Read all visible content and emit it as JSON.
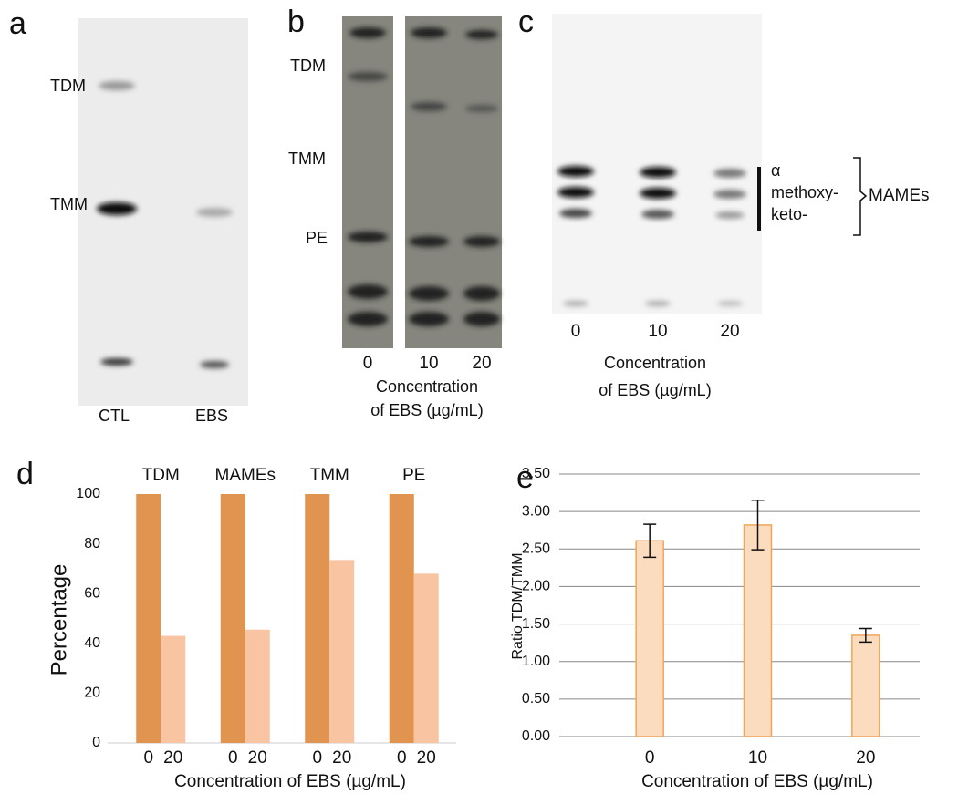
{
  "panels": {
    "a": {
      "label": "a",
      "bands": [
        "TDM",
        "TMM"
      ],
      "lanes": [
        "CTL",
        "EBS"
      ]
    },
    "b": {
      "label": "b",
      "bands": [
        "TDM",
        "TMM",
        "PE"
      ],
      "lanes": [
        "0",
        "10",
        "20"
      ],
      "xlabel": [
        "Concentration",
        "of EBS (µg/mL)"
      ]
    },
    "c": {
      "label": "c",
      "bands": [
        "α",
        "methoxy-",
        "keto-"
      ],
      "group": "MAMEs",
      "lanes": [
        "0",
        "10",
        "20"
      ],
      "xlabel": [
        "Concentration",
        "of EBS (µg/mL)"
      ]
    }
  },
  "chart_data": [
    {
      "panel": "d",
      "type": "grouped_bar",
      "categories": [
        "TDM",
        "MAMEs",
        "TMM",
        "PE"
      ],
      "series": [
        {
          "name": "0",
          "color": "#e0944f",
          "values": [
            100,
            100,
            100,
            100
          ]
        },
        {
          "name": "20",
          "color": "#f8c4a2",
          "values": [
            43,
            45.5,
            73.5,
            68
          ]
        }
      ],
      "ylabel": "Percentage",
      "xlabel": "Concentration of EBS (µg/mL)",
      "ylim": [
        0,
        100
      ],
      "yticks": [
        0,
        20,
        40,
        60,
        80,
        100
      ],
      "grid": false
    },
    {
      "panel": "e",
      "type": "bar",
      "categories": [
        "0",
        "10",
        "20"
      ],
      "values": [
        2.61,
        2.82,
        1.35
      ],
      "errors": [
        0.22,
        0.33,
        0.09
      ],
      "color": "#fcdcbe",
      "ylabel": "Ratio TDM/TMM",
      "xlabel": "Concentration of EBS (µg/mL)",
      "ylim": [
        0,
        3.5
      ],
      "yticks": [
        {
          "value": 0,
          "label": "0.00"
        },
        {
          "value": 0.5,
          "label": "0.50"
        },
        {
          "value": 1,
          "label": "1.00"
        },
        {
          "value": 1.5,
          "label": "1.50"
        },
        {
          "value": 2,
          "label": "2.00"
        },
        {
          "value": 2.5,
          "label": "2.50"
        },
        {
          "value": 3,
          "label": "3.00"
        },
        {
          "value": 3.5,
          "label": "3.50"
        }
      ],
      "grid": true
    }
  ]
}
